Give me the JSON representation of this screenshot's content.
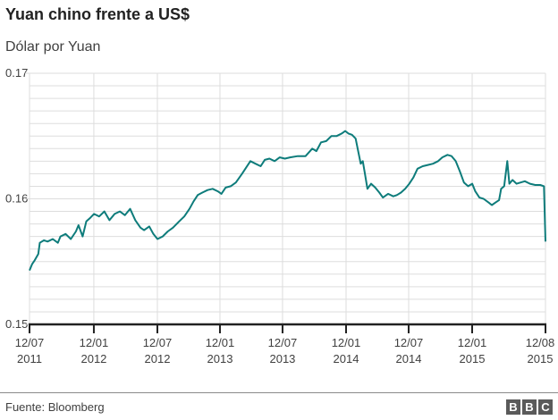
{
  "header": {
    "title": "Yuan chino frente a US$",
    "subtitle": "Dólar por Yuan"
  },
  "footer": {
    "source": "Fuente: Bloomberg",
    "logo_letters": [
      "B",
      "B",
      "C"
    ]
  },
  "colors": {
    "line": "#0e7c7b",
    "grid": "#dddddd",
    "axis": "#222222"
  },
  "chart_data": {
    "type": "line",
    "title": "Yuan chino frente a US$",
    "subtitle": "Dólar por Yuan",
    "xlabel": "",
    "ylabel": "Dólar por Yuan",
    "ylim": [
      0.15,
      0.17
    ],
    "yticks": [
      "0.17",
      "0.16",
      "0.15"
    ],
    "xticks": [
      {
        "line1": "12/07",
        "line2": "2011",
        "pos": 0.0
      },
      {
        "line1": "12/01",
        "line2": "2012",
        "pos": 0.1247
      },
      {
        "line1": "12/07",
        "line2": "2012",
        "pos": 0.2478
      },
      {
        "line1": "12/01",
        "line2": "2013",
        "pos": 0.3691
      },
      {
        "line1": "12/07",
        "line2": "2013",
        "pos": 0.4904
      },
      {
        "line1": "12/01",
        "line2": "2014",
        "pos": 0.6135
      },
      {
        "line1": "12/07",
        "line2": "2014",
        "pos": 0.7348
      },
      {
        "line1": "12/01",
        "line2": "2015",
        "pos": 0.8579
      },
      {
        "line1": "12/08",
        "line2": "2015",
        "pos": 1.0
      }
    ],
    "grid": true,
    "legend": null,
    "series": [
      {
        "name": "Dólar por Yuan",
        "points": [
          [
            0.0,
            0.1543
          ],
          [
            0.005,
            0.1548
          ],
          [
            0.01,
            0.1551
          ],
          [
            0.017,
            0.1556
          ],
          [
            0.02,
            0.1565
          ],
          [
            0.028,
            0.1567
          ],
          [
            0.035,
            0.1566
          ],
          [
            0.045,
            0.1568
          ],
          [
            0.055,
            0.1565
          ],
          [
            0.06,
            0.157
          ],
          [
            0.07,
            0.1572
          ],
          [
            0.08,
            0.1568
          ],
          [
            0.09,
            0.1574
          ],
          [
            0.095,
            0.1579
          ],
          [
            0.103,
            0.157
          ],
          [
            0.11,
            0.1582
          ],
          [
            0.118,
            0.1585
          ],
          [
            0.125,
            0.1588
          ],
          [
            0.135,
            0.1586
          ],
          [
            0.145,
            0.159
          ],
          [
            0.155,
            0.1583
          ],
          [
            0.165,
            0.1588
          ],
          [
            0.175,
            0.159
          ],
          [
            0.185,
            0.1587
          ],
          [
            0.195,
            0.1592
          ],
          [
            0.205,
            0.1583
          ],
          [
            0.215,
            0.1577
          ],
          [
            0.222,
            0.1575
          ],
          [
            0.232,
            0.1578
          ],
          [
            0.24,
            0.1572
          ],
          [
            0.248,
            0.1568
          ],
          [
            0.258,
            0.157
          ],
          [
            0.268,
            0.1574
          ],
          [
            0.278,
            0.1577
          ],
          [
            0.29,
            0.1582
          ],
          [
            0.3,
            0.1586
          ],
          [
            0.31,
            0.1592
          ],
          [
            0.318,
            0.1598
          ],
          [
            0.326,
            0.1603
          ],
          [
            0.335,
            0.1605
          ],
          [
            0.345,
            0.1607
          ],
          [
            0.355,
            0.1608
          ],
          [
            0.365,
            0.1606
          ],
          [
            0.372,
            0.1604
          ],
          [
            0.38,
            0.1609
          ],
          [
            0.39,
            0.161
          ],
          [
            0.4,
            0.1613
          ],
          [
            0.412,
            0.162
          ],
          [
            0.42,
            0.1625
          ],
          [
            0.428,
            0.163
          ],
          [
            0.438,
            0.1628
          ],
          [
            0.448,
            0.1626
          ],
          [
            0.456,
            0.1631
          ],
          [
            0.465,
            0.1632
          ],
          [
            0.475,
            0.163
          ],
          [
            0.485,
            0.1633
          ],
          [
            0.495,
            0.1632
          ],
          [
            0.505,
            0.1633
          ],
          [
            0.52,
            0.1634
          ],
          [
            0.535,
            0.1634
          ],
          [
            0.548,
            0.164
          ],
          [
            0.556,
            0.1638
          ],
          [
            0.565,
            0.1645
          ],
          [
            0.575,
            0.1646
          ],
          [
            0.585,
            0.165
          ],
          [
            0.595,
            0.165
          ],
          [
            0.605,
            0.1652
          ],
          [
            0.612,
            0.1654
          ],
          [
            0.618,
            0.1652
          ],
          [
            0.625,
            0.1651
          ],
          [
            0.632,
            0.1648
          ],
          [
            0.638,
            0.1636
          ],
          [
            0.642,
            0.1628
          ],
          [
            0.646,
            0.163
          ],
          [
            0.65,
            0.162
          ],
          [
            0.655,
            0.1608
          ],
          [
            0.662,
            0.1612
          ],
          [
            0.67,
            0.1609
          ],
          [
            0.678,
            0.1605
          ],
          [
            0.685,
            0.1601
          ],
          [
            0.695,
            0.1604
          ],
          [
            0.705,
            0.1602
          ],
          [
            0.712,
            0.1603
          ],
          [
            0.72,
            0.1605
          ],
          [
            0.728,
            0.1608
          ],
          [
            0.736,
            0.1612
          ],
          [
            0.744,
            0.1617
          ],
          [
            0.752,
            0.1624
          ],
          [
            0.762,
            0.1626
          ],
          [
            0.772,
            0.1627
          ],
          [
            0.782,
            0.1628
          ],
          [
            0.792,
            0.163
          ],
          [
            0.8,
            0.1633
          ],
          [
            0.81,
            0.1635
          ],
          [
            0.818,
            0.1634
          ],
          [
            0.826,
            0.163
          ],
          [
            0.834,
            0.1622
          ],
          [
            0.842,
            0.1613
          ],
          [
            0.85,
            0.161
          ],
          [
            0.858,
            0.1612
          ],
          [
            0.864,
            0.1606
          ],
          [
            0.872,
            0.1601
          ],
          [
            0.88,
            0.16
          ],
          [
            0.89,
            0.1597
          ],
          [
            0.896,
            0.1595
          ],
          [
            0.903,
            0.1597
          ],
          [
            0.91,
            0.1599
          ],
          [
            0.914,
            0.1608
          ],
          [
            0.92,
            0.161
          ],
          [
            0.926,
            0.163
          ],
          [
            0.93,
            0.1612
          ],
          [
            0.936,
            0.1615
          ],
          [
            0.944,
            0.1612
          ],
          [
            0.952,
            0.1613
          ],
          [
            0.96,
            0.1614
          ],
          [
            0.97,
            0.1612
          ],
          [
            0.98,
            0.1611
          ],
          [
            0.99,
            0.1611
          ],
          [
            0.997,
            0.161
          ],
          [
            1.0,
            0.1566
          ]
        ]
      }
    ]
  }
}
